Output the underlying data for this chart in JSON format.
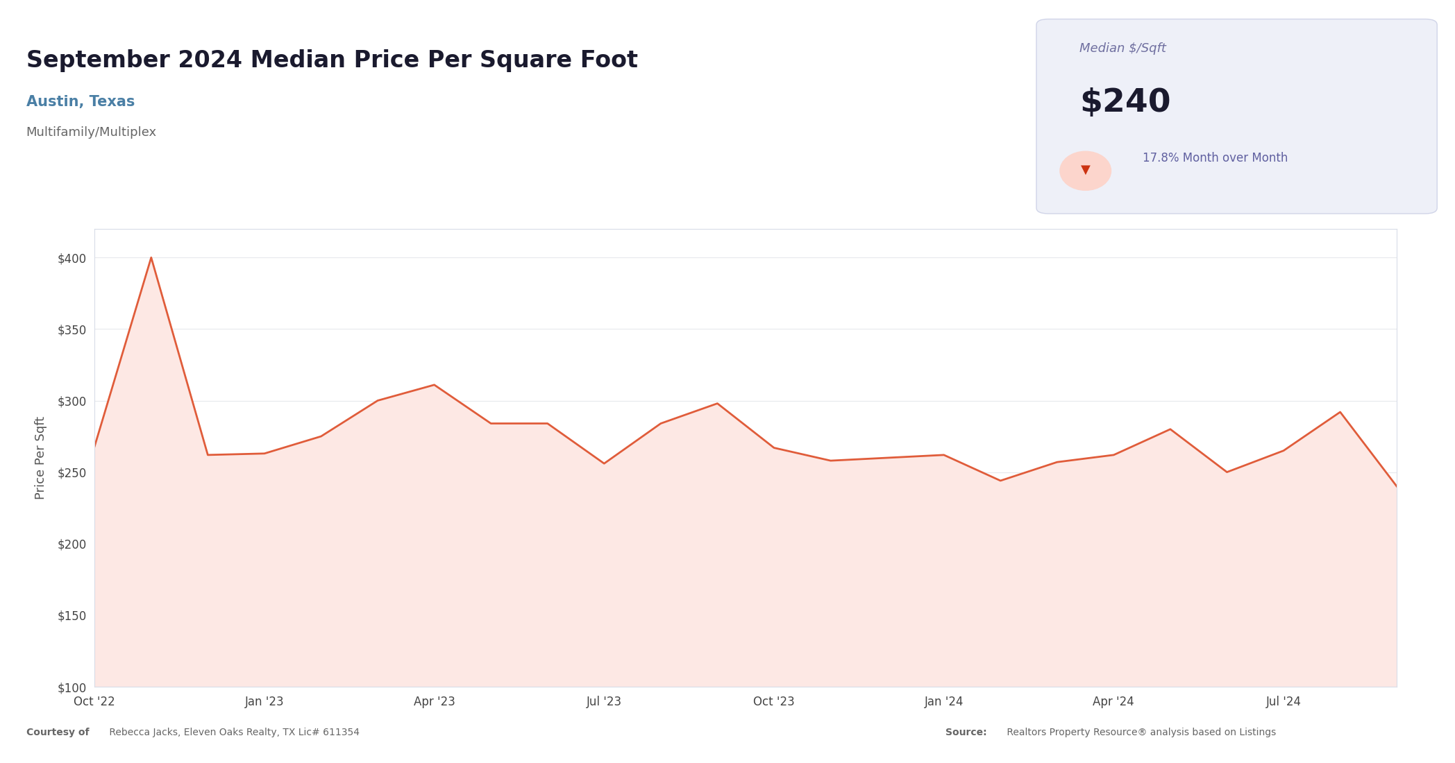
{
  "title": "September 2024 Median Price Per Square Foot",
  "subtitle": "Austin, Texas",
  "subtitle2": "Multifamily/Multiplex",
  "ylabel": "Price Per Sqft",
  "box_label": "Median $/Sqft",
  "box_value": "$240",
  "box_change": "17.8% Month over Month",
  "footer_left_bold": "Courtesy of",
  "footer_left_normal": " Rebecca Jacks, Eleven Oaks Realty, TX Lic# 611354",
  "footer_right_bold": "Source:",
  "footer_right_normal": " Realtors Property Resource® analysis based on Listings",
  "x_labels": [
    "Oct '22",
    "Jan '23",
    "Apr '23",
    "Jul '23",
    "Oct '23",
    "Jan '24",
    "Apr '24",
    "Jul '24"
  ],
  "x_positions": [
    0,
    3,
    6,
    9,
    12,
    15,
    18,
    21
  ],
  "values": [
    268,
    400,
    262,
    263,
    275,
    300,
    311,
    284,
    284,
    256,
    284,
    298,
    267,
    258,
    260,
    262,
    244,
    257,
    262,
    280,
    250,
    265,
    292,
    240
  ],
  "ylim": [
    100,
    420
  ],
  "yticks": [
    100,
    150,
    200,
    250,
    300,
    350,
    400
  ],
  "line_color": "#e05c3a",
  "fill_color": "#fde8e4",
  "background_color": "#ffffff",
  "chart_bg": "#ffffff",
  "border_color": "#d8dce8",
  "grid_color": "#e8eaee",
  "title_color": "#1a1a2e",
  "subtitle_color": "#4a7fa5",
  "subtitle2_color": "#666666",
  "box_bg": "#eef0f8",
  "box_border_color": "#d0d4e8",
  "box_label_color": "#7070a0",
  "box_value_color": "#1a1a2e",
  "box_change_color": "#6060a0",
  "footer_color": "#666666",
  "down_arrow_bg": "#fcd5cc",
  "down_arrow_color": "#cc3311"
}
